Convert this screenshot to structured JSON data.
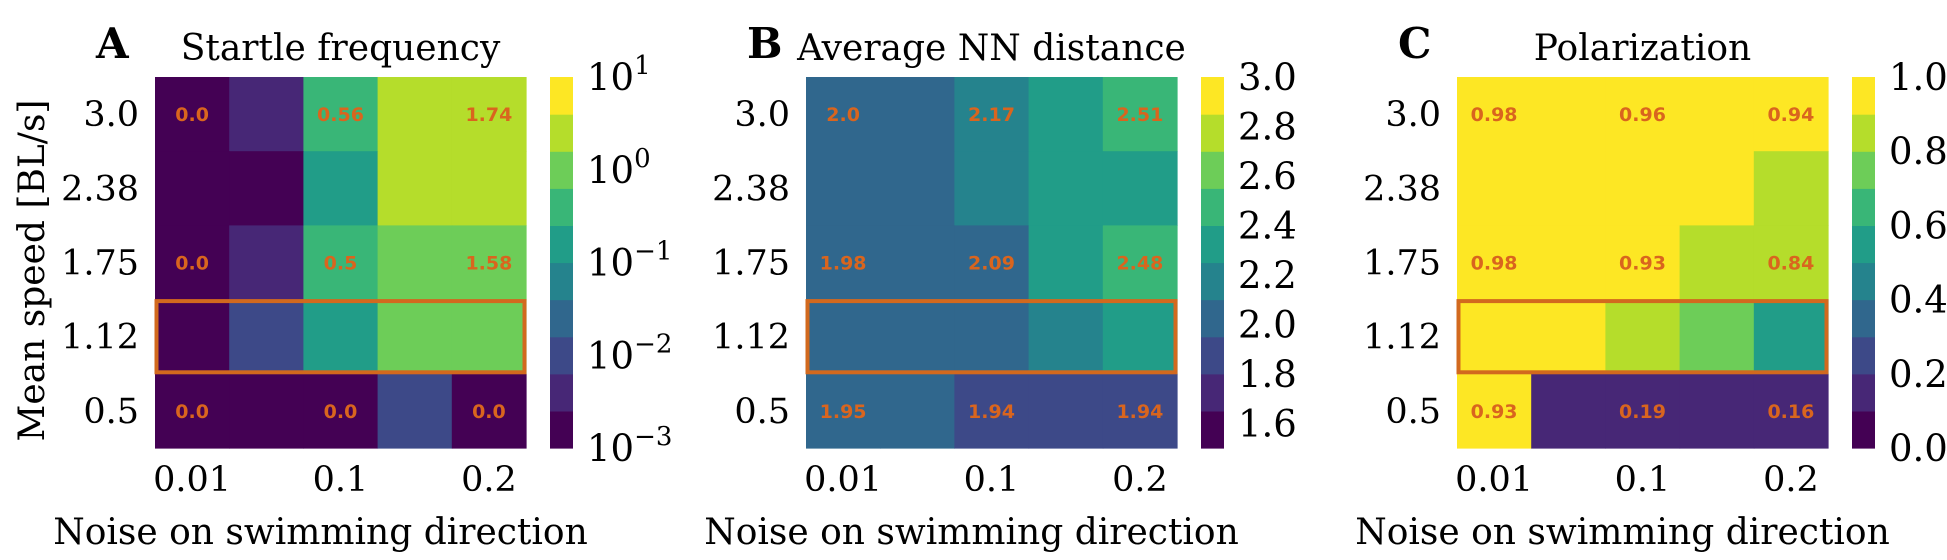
{
  "highlight_color": "#d2691e",
  "annotation_color": "#d9651e",
  "colormap": "viridis",
  "shared_xlabel": "Noise on swimming direction",
  "shared_ylabel": "Mean speed [BL/s]",
  "chart_data": [
    {
      "type": "heatmap",
      "panel": "A",
      "title": "Startle frequency",
      "xlabel": "Noise on swimming direction",
      "ylabel": "Mean speed [BL/s]",
      "x_ticks": [
        "0.01",
        "0.1",
        "0.2"
      ],
      "y_ticks": [
        "3.0",
        "2.38",
        "1.75",
        "1.12",
        "0.5"
      ],
      "color_scale": "log",
      "vmin": 0.001,
      "vmax": 10,
      "colorbar_ticks": [
        {
          "base": "10",
          "exp": "1",
          "value": 10
        },
        {
          "base": "10",
          "exp": "0",
          "value": 1
        },
        {
          "base": "10",
          "exp": "−1",
          "value": 0.1
        },
        {
          "base": "10",
          "exp": "−2",
          "value": 0.01
        },
        {
          "base": "10",
          "exp": "−3",
          "value": 0.001
        }
      ],
      "color_levels": 10,
      "values": [
        [
          0.001,
          0.004,
          0.56,
          1.74,
          1.74
        ],
        [
          0.001,
          0.001,
          0.2,
          1.7,
          1.7
        ],
        [
          0.001,
          0.004,
          0.5,
          1.58,
          1.58
        ],
        [
          0.001,
          0.015,
          0.2,
          1.5,
          1.5
        ],
        [
          0.001,
          0.001,
          0.001,
          0.01,
          0.001
        ]
      ],
      "annotations": [
        {
          "row": 0,
          "col": 0,
          "text": "0.0"
        },
        {
          "row": 0,
          "col": 2,
          "text": "0.56"
        },
        {
          "row": 0,
          "col": 4,
          "text": "1.74"
        },
        {
          "row": 2,
          "col": 0,
          "text": "0.0"
        },
        {
          "row": 2,
          "col": 2,
          "text": "0.5"
        },
        {
          "row": 2,
          "col": 4,
          "text": "1.58"
        },
        {
          "row": 4,
          "col": 0,
          "text": "0.0"
        },
        {
          "row": 4,
          "col": 2,
          "text": "0.0"
        },
        {
          "row": 4,
          "col": 4,
          "text": "0.0"
        }
      ],
      "highlight_row": 3,
      "grid": false
    },
    {
      "type": "heatmap",
      "panel": "B",
      "title": "Average NN distance",
      "xlabel": "Noise on swimming direction",
      "ylabel": "",
      "x_ticks": [
        "0.01",
        "0.1",
        "0.2"
      ],
      "y_ticks": [
        "3.0",
        "2.38",
        "1.75",
        "1.12",
        "0.5"
      ],
      "color_scale": "linear",
      "vmin": 1.5,
      "vmax": 3.0,
      "colorbar_ticks": [
        {
          "label": "3.0",
          "value": 3.0
        },
        {
          "label": "2.8",
          "value": 2.8
        },
        {
          "label": "2.6",
          "value": 2.6
        },
        {
          "label": "2.4",
          "value": 2.4
        },
        {
          "label": "2.2",
          "value": 2.2
        },
        {
          "label": "2.0",
          "value": 2.0
        },
        {
          "label": "1.8",
          "value": 1.8
        },
        {
          "label": "1.6",
          "value": 1.6
        }
      ],
      "color_levels": 10,
      "values": [
        [
          2.0,
          1.96,
          2.17,
          2.35,
          2.51
        ],
        [
          1.96,
          1.96,
          2.15,
          2.3,
          2.35
        ],
        [
          1.98,
          1.96,
          2.09,
          2.25,
          2.48
        ],
        [
          1.97,
          1.96,
          2.08,
          2.15,
          2.25
        ],
        [
          1.95,
          1.95,
          1.94,
          1.94,
          1.94
        ]
      ],
      "annotations": [
        {
          "row": 0,
          "col": 0,
          "text": "2.0"
        },
        {
          "row": 0,
          "col": 2,
          "text": "2.17"
        },
        {
          "row": 0,
          "col": 4,
          "text": "2.51"
        },
        {
          "row": 2,
          "col": 0,
          "text": "1.98"
        },
        {
          "row": 2,
          "col": 2,
          "text": "2.09"
        },
        {
          "row": 2,
          "col": 4,
          "text": "2.48"
        },
        {
          "row": 4,
          "col": 0,
          "text": "1.95"
        },
        {
          "row": 4,
          "col": 2,
          "text": "1.94"
        },
        {
          "row": 4,
          "col": 4,
          "text": "1.94"
        }
      ],
      "highlight_row": 3,
      "grid": false
    },
    {
      "type": "heatmap",
      "panel": "C",
      "title": "Polarization",
      "xlabel": "Noise on swimming direction",
      "ylabel": "",
      "x_ticks": [
        "0.01",
        "0.1",
        "0.2"
      ],
      "y_ticks": [
        "3.0",
        "2.38",
        "1.75",
        "1.12",
        "0.5"
      ],
      "color_scale": "linear",
      "vmin": 0.0,
      "vmax": 1.0,
      "colorbar_ticks": [
        {
          "label": "1.0",
          "value": 1.0
        },
        {
          "label": "0.8",
          "value": 0.8
        },
        {
          "label": "0.6",
          "value": 0.6
        },
        {
          "label": "0.4",
          "value": 0.4
        },
        {
          "label": "0.2",
          "value": 0.2
        },
        {
          "label": "0.0",
          "value": 0.0
        }
      ],
      "color_levels": 10,
      "values": [
        [
          0.98,
          0.97,
          0.96,
          0.95,
          0.94
        ],
        [
          0.98,
          0.97,
          0.95,
          0.93,
          0.88
        ],
        [
          0.98,
          0.96,
          0.93,
          0.86,
          0.84
        ],
        [
          0.96,
          0.92,
          0.84,
          0.7,
          0.55
        ],
        [
          0.93,
          0.19,
          0.19,
          0.19,
          0.16
        ]
      ],
      "annotations": [
        {
          "row": 0,
          "col": 0,
          "text": "0.98"
        },
        {
          "row": 0,
          "col": 2,
          "text": "0.96"
        },
        {
          "row": 0,
          "col": 4,
          "text": "0.94"
        },
        {
          "row": 2,
          "col": 0,
          "text": "0.98"
        },
        {
          "row": 2,
          "col": 2,
          "text": "0.93"
        },
        {
          "row": 2,
          "col": 4,
          "text": "0.84"
        },
        {
          "row": 4,
          "col": 0,
          "text": "0.93"
        },
        {
          "row": 4,
          "col": 2,
          "text": "0.19"
        },
        {
          "row": 4,
          "col": 4,
          "text": "0.16"
        }
      ],
      "highlight_row": 3,
      "grid": false
    }
  ]
}
